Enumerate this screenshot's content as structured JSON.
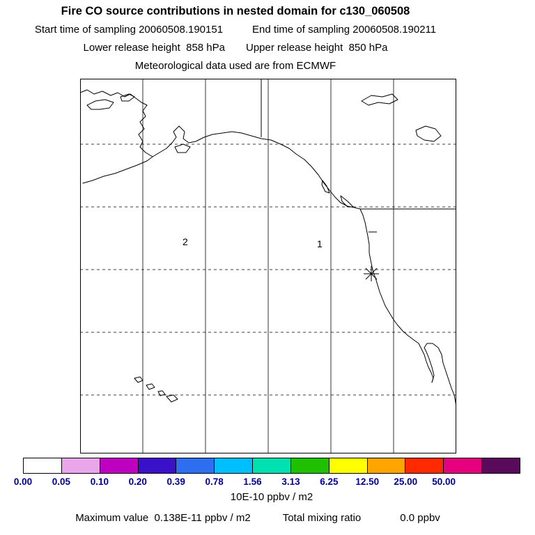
{
  "header": {
    "title": "Fire CO source contributions in nested domain for c130_060508",
    "start_time": "Start time of sampling 20060508.190151",
    "end_time": "End time of sampling 20060508.190211",
    "lower_release": "Lower release height  858 hPa",
    "upper_release": "Upper release height  850 hPa",
    "met_source": "Meteorological data used are from ECMWF"
  },
  "map": {
    "domain_label_2": "2",
    "domain_label_1": "1"
  },
  "colorbar": {
    "tick_labels": [
      "0.00",
      "0.05",
      "0.10",
      "0.20",
      "0.39",
      "0.78",
      "1.56",
      "3.13",
      "6.25",
      "12.50",
      "25.00",
      "50.00"
    ],
    "segment_colors": [
      "#ffffff",
      "#eaa6ea",
      "#c000c0",
      "#3a10c8",
      "#2e6ff2",
      "#00bfff",
      "#00e0b0",
      "#1fc000",
      "#ffff00",
      "#ffa500",
      "#ff2a00",
      "#e6007e",
      "#5a0a5a"
    ],
    "label_color": "#000099",
    "units": "10E-10 ppbv / m2"
  },
  "footer": {
    "max_value": "Maximum value  0.138E-11 ppbv / m2",
    "total_mixing_label": "Total mixing ratio",
    "total_mixing_value": "0.0 ppbv"
  },
  "chart_data": {
    "type": "heatmap",
    "title": "Fire CO source contributions in nested domain for c130_060508",
    "subtitle_lines": [
      "Start time of sampling 20060508.190151",
      "End time of sampling 20060508.190211",
      "Lower release height  858 hPa",
      "Upper release height  850 hPa",
      "Meteorological data used are from ECMWF"
    ],
    "colorbar_levels": [
      0.0,
      0.05,
      0.1,
      0.2,
      0.39,
      0.78,
      1.56,
      3.13,
      6.25,
      12.5,
      25.0,
      50.0
    ],
    "colorbar_units": "10E-10 ppbv / m2",
    "grid": true,
    "legend_position": "bottom",
    "values_above_lowest_level": 0,
    "maximum_value": "0.138E-11 ppbv / m2",
    "total_mixing_ratio": "0.0 ppbv",
    "annotations": [
      {
        "label": "2"
      },
      {
        "label": "1"
      },
      {
        "marker": "asterisk"
      }
    ]
  }
}
